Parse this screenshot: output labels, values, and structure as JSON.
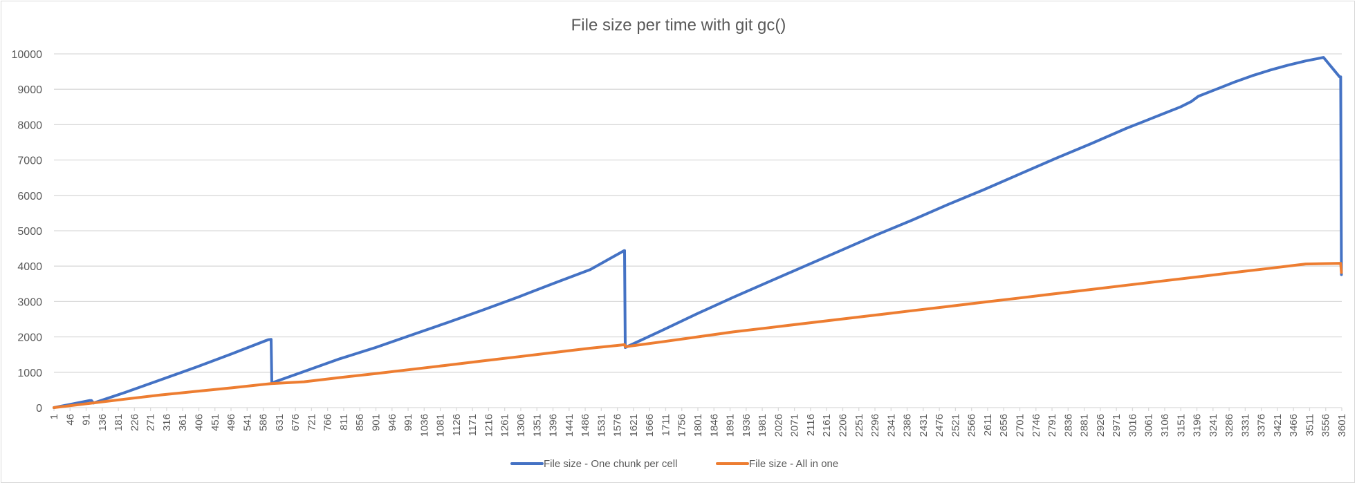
{
  "chart_data": {
    "type": "line",
    "title": "File size per time with git gc()",
    "xlabel": "",
    "ylabel": "",
    "xlim": [
      1,
      3601
    ],
    "ylim": [
      0,
      10000
    ],
    "y_ticks": [
      0,
      1000,
      2000,
      3000,
      4000,
      5000,
      6000,
      7000,
      8000,
      9000,
      10000
    ],
    "x_tick_labels": [
      1,
      46,
      91,
      136,
      181,
      226,
      271,
      316,
      361,
      406,
      451,
      496,
      541,
      586,
      631,
      676,
      721,
      766,
      811,
      856,
      901,
      946,
      991,
      1036,
      1081,
      1126,
      1171,
      1216,
      1261,
      1306,
      1351,
      1396,
      1441,
      1486,
      1531,
      1576,
      1621,
      1666,
      1711,
      1756,
      1801,
      1846,
      1891,
      1936,
      1981,
      2026,
      2071,
      2116,
      2161,
      2206,
      2251,
      2296,
      2341,
      2386,
      2431,
      2476,
      2521,
      2566,
      2611,
      2656,
      2701,
      2746,
      2791,
      2836,
      2881,
      2926,
      2971,
      3016,
      3061,
      3106,
      3151,
      3196,
      3241,
      3286,
      3331,
      3376,
      3421,
      3466,
      3511,
      3556,
      3601
    ],
    "grid": "horizontal",
    "legend_position": "bottom",
    "series": [
      {
        "name": "File size - One chunk per cell",
        "color": "#4472c4",
        "points": [
          [
            1,
            0
          ],
          [
            50,
            100
          ],
          [
            100,
            200
          ],
          [
            106,
            200
          ],
          [
            112,
            130
          ],
          [
            150,
            260
          ],
          [
            200,
            430
          ],
          [
            300,
            790
          ],
          [
            400,
            1150
          ],
          [
            500,
            1530
          ],
          [
            600,
            1920
          ],
          [
            608,
            1930
          ],
          [
            610,
            700
          ],
          [
            700,
            1020
          ],
          [
            800,
            1380
          ],
          [
            900,
            1700
          ],
          [
            1000,
            2050
          ],
          [
            1100,
            2400
          ],
          [
            1200,
            2760
          ],
          [
            1300,
            3130
          ],
          [
            1400,
            3520
          ],
          [
            1500,
            3900
          ],
          [
            1595,
            4440
          ],
          [
            1596,
            4440
          ],
          [
            1598,
            1700
          ],
          [
            1700,
            2180
          ],
          [
            1800,
            2660
          ],
          [
            1900,
            3120
          ],
          [
            2000,
            3560
          ],
          [
            2100,
            4000
          ],
          [
            2200,
            4440
          ],
          [
            2300,
            4880
          ],
          [
            2400,
            5300
          ],
          [
            2500,
            5740
          ],
          [
            2600,
            6160
          ],
          [
            2700,
            6600
          ],
          [
            2800,
            7040
          ],
          [
            2900,
            7460
          ],
          [
            3000,
            7900
          ],
          [
            3050,
            8100
          ],
          [
            3100,
            8300
          ],
          [
            3150,
            8500
          ],
          [
            3180,
            8650
          ],
          [
            3200,
            8800
          ],
          [
            3250,
            9000
          ],
          [
            3300,
            9200
          ],
          [
            3350,
            9380
          ],
          [
            3400,
            9540
          ],
          [
            3450,
            9680
          ],
          [
            3500,
            9800
          ],
          [
            3550,
            9900
          ],
          [
            3595,
            9350
          ],
          [
            3598,
            9350
          ],
          [
            3600,
            3760
          ]
        ]
      },
      {
        "name": "File size - All in one",
        "color": "#ed7d31",
        "points": [
          [
            1,
            0
          ],
          [
            100,
            120
          ],
          [
            200,
            240
          ],
          [
            300,
            360
          ],
          [
            400,
            460
          ],
          [
            500,
            560
          ],
          [
            608,
            680
          ],
          [
            700,
            730
          ],
          [
            800,
            850
          ],
          [
            900,
            960
          ],
          [
            1000,
            1080
          ],
          [
            1100,
            1200
          ],
          [
            1200,
            1320
          ],
          [
            1300,
            1440
          ],
          [
            1400,
            1560
          ],
          [
            1500,
            1680
          ],
          [
            1596,
            1780
          ],
          [
            1598,
            1720
          ],
          [
            1700,
            1860
          ],
          [
            1800,
            2000
          ],
          [
            1900,
            2140
          ],
          [
            2000,
            2260
          ],
          [
            2100,
            2380
          ],
          [
            2200,
            2500
          ],
          [
            2300,
            2620
          ],
          [
            2400,
            2740
          ],
          [
            2500,
            2860
          ],
          [
            2600,
            2980
          ],
          [
            2700,
            3100
          ],
          [
            2800,
            3220
          ],
          [
            2900,
            3340
          ],
          [
            3000,
            3460
          ],
          [
            3100,
            3580
          ],
          [
            3200,
            3700
          ],
          [
            3300,
            3820
          ],
          [
            3400,
            3940
          ],
          [
            3500,
            4060
          ],
          [
            3598,
            4080
          ],
          [
            3600,
            3820
          ]
        ]
      }
    ]
  }
}
